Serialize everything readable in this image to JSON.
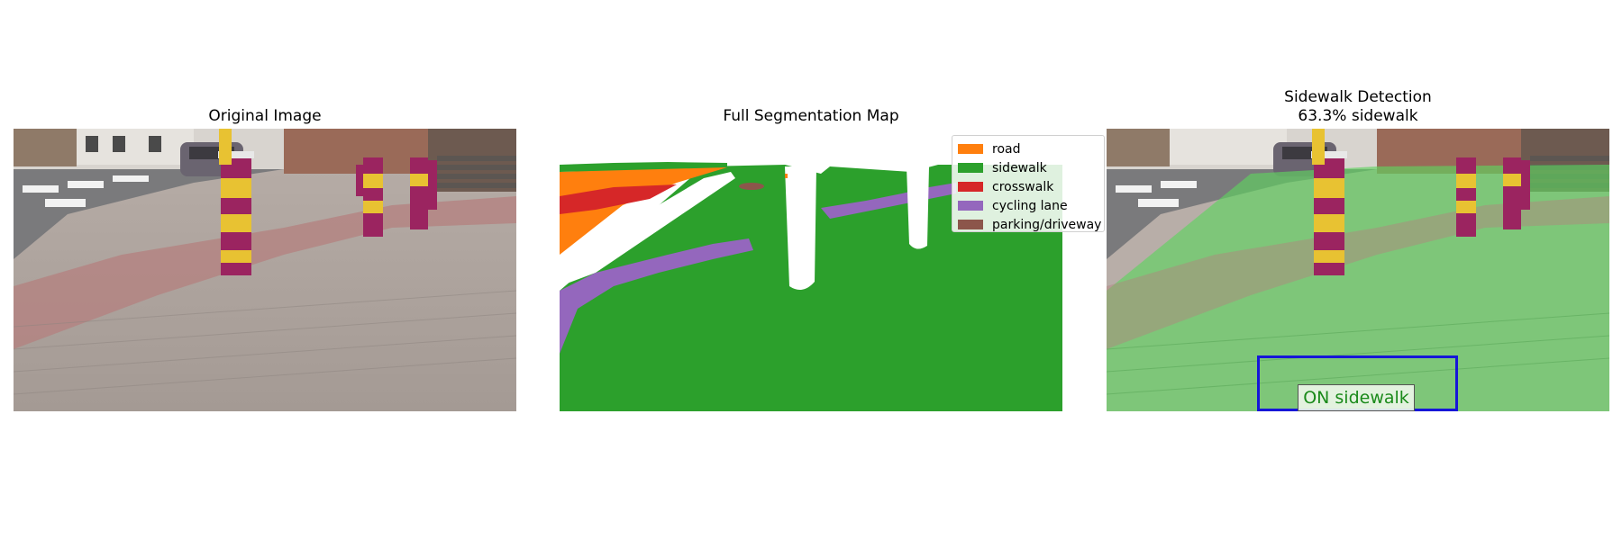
{
  "panels": {
    "original": {
      "title": "Original Image"
    },
    "segmentation": {
      "title": "Full Segmentation Map"
    },
    "detection": {
      "title_line1": "Sidewalk Detection",
      "title_line2": "63.3% sidewalk",
      "status_label": "ON sidewalk",
      "sidewalk_fraction": 0.633
    }
  },
  "legend": {
    "items": [
      {
        "label": "road",
        "color": "#ff7f0e"
      },
      {
        "label": "sidewalk",
        "color": "#2ca02c"
      },
      {
        "label": "crosswalk",
        "color": "#d62728"
      },
      {
        "label": "cycling lane",
        "color": "#9467bd"
      },
      {
        "label": "parking/driveway",
        "color": "#8c564b"
      }
    ]
  },
  "colors": {
    "detection_box": "#1616d8",
    "status_text": "#1a8a1a",
    "bollard_magenta": "#9b2460",
    "bollard_yellow": "#e8c232"
  }
}
